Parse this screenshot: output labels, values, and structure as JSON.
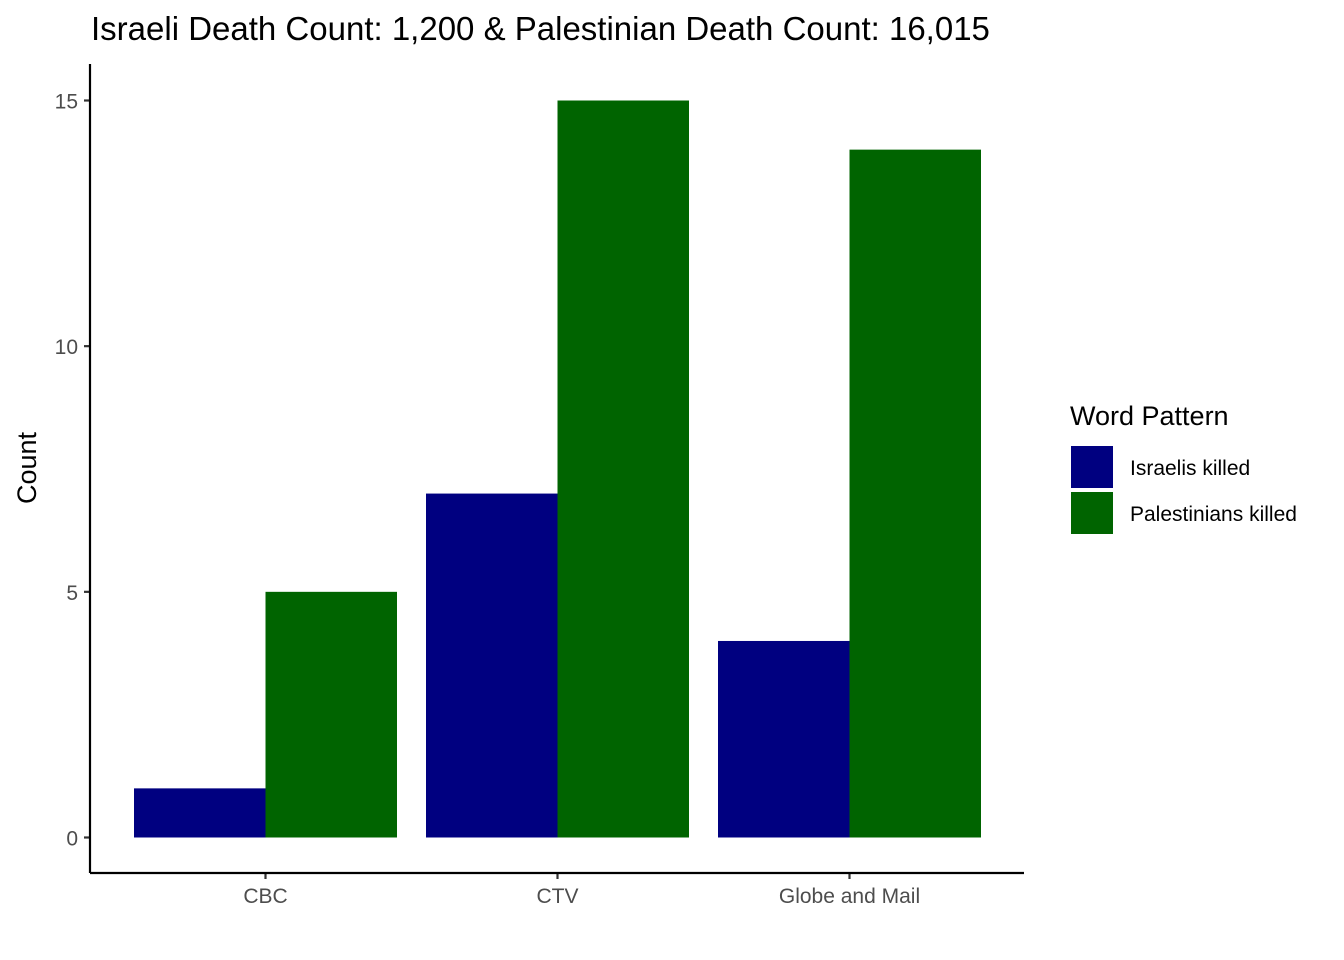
{
  "chart_data": {
    "type": "bar",
    "title": "Israeli Death Count: 1,200 & Palestinian Death Count: 16,015",
    "xlabel": "",
    "ylabel": "Count",
    "categories": [
      "CBC",
      "CTV",
      "Globe and Mail"
    ],
    "series": [
      {
        "name": "Israelis killed",
        "values": [
          1,
          7,
          4
        ],
        "color": "#000080"
      },
      {
        "name": "Palestinians killed",
        "values": [
          5,
          15,
          14
        ],
        "color": "#006400"
      }
    ],
    "ylim": [
      0,
      15
    ],
    "yticks": [
      0,
      5,
      10,
      15
    ],
    "legend": {
      "title": "Word Pattern",
      "position": "right"
    },
    "grid": false
  }
}
